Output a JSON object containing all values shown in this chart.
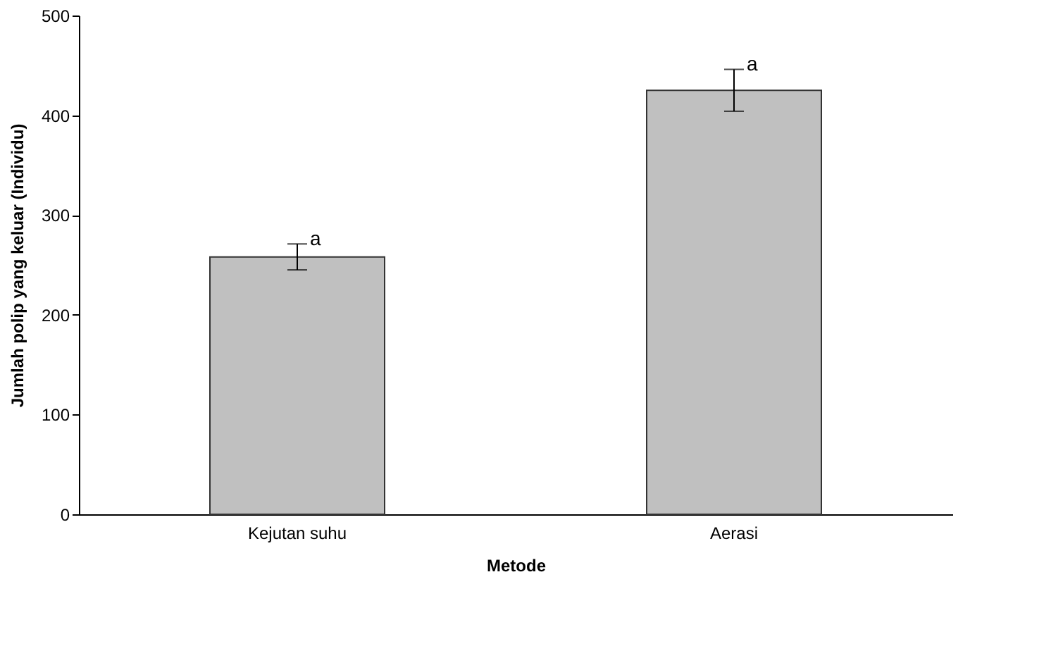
{
  "chart_data": {
    "type": "bar",
    "xlabel": "Metode",
    "ylabel": "Jumlah polip yang keluar (Individu)",
    "categories": [
      "Kejutan suhu",
      "Aerasi"
    ],
    "values": [
      258,
      425
    ],
    "errors": [
      13,
      21
    ],
    "color": "#c0c0c0",
    "ylim": [
      0,
      500
    ],
    "yticks": [
      0,
      100,
      200,
      300,
      400,
      500
    ],
    "grid": false,
    "annotations": [
      {
        "text": "a",
        "x": "Kejutan suhu",
        "y": 271
      },
      {
        "text": "a",
        "x": "Aerasi",
        "y": 446
      }
    ]
  }
}
